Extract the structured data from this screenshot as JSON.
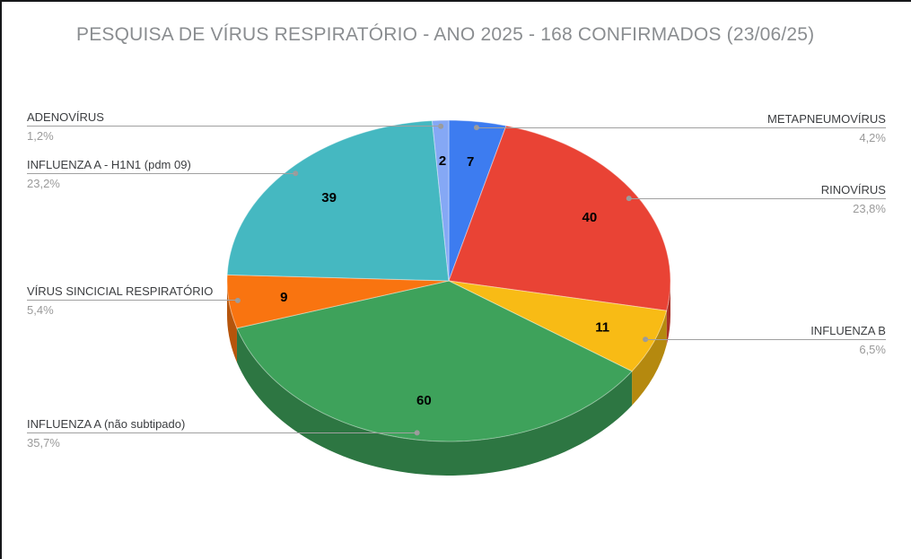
{
  "title": "PESQUISA DE VÍRUS RESPIRATÓRIO - ANO 2025 - 168 CONFIRMADOS (23/06/25)",
  "chart_data": {
    "type": "pie",
    "effect": "3d",
    "title": "PESQUISA DE VÍRUS RESPIRATÓRIO - ANO 2025 - 168 CONFIRMADOS (23/06/25)",
    "total": 168,
    "start_angle_deg": 0,
    "direction": "clockwise",
    "legend_position": "callout-labels",
    "slices": [
      {
        "label": "METAPNEUMOVÍRUS",
        "value": 7,
        "pct": "4,2%",
        "color": "#3D7CF0",
        "callout_side": "right"
      },
      {
        "label": "RINOVÍRUS",
        "value": 40,
        "pct": "23,8%",
        "color": "#E94335",
        "callout_side": "right"
      },
      {
        "label": "INFLUENZA B",
        "value": 11,
        "pct": "6,5%",
        "color": "#F8BB15",
        "callout_side": "right"
      },
      {
        "label": "INFLUENZA A (não subtipado)",
        "value": 60,
        "pct": "35,7%",
        "color": "#3EA25B",
        "callout_side": "left"
      },
      {
        "label": "VÍRUS SINCICIAL RESPIRATÓRIO",
        "value": 9,
        "pct": "5,4%",
        "color": "#F97410",
        "callout_side": "left"
      },
      {
        "label": "INFLUENZA A - H1N1 (pdm 09)",
        "value": 39,
        "pct": "23,2%",
        "color": "#45B8C1",
        "callout_side": "left"
      },
      {
        "label": "ADENOVÍRUS",
        "value": 2,
        "pct": "1,2%",
        "color": "#85A8F5",
        "callout_side": "left"
      }
    ]
  },
  "colors": {
    "title_text": "#8a8d90",
    "callout_label_text": "#3b3d40",
    "callout_pct_text": "#9a9a9a",
    "leader_line": "#a0a0a0",
    "leader_dot": "#9b9b9b",
    "value_text": "#000000",
    "window_edge": "#17181a",
    "background": "#ffffff"
  }
}
